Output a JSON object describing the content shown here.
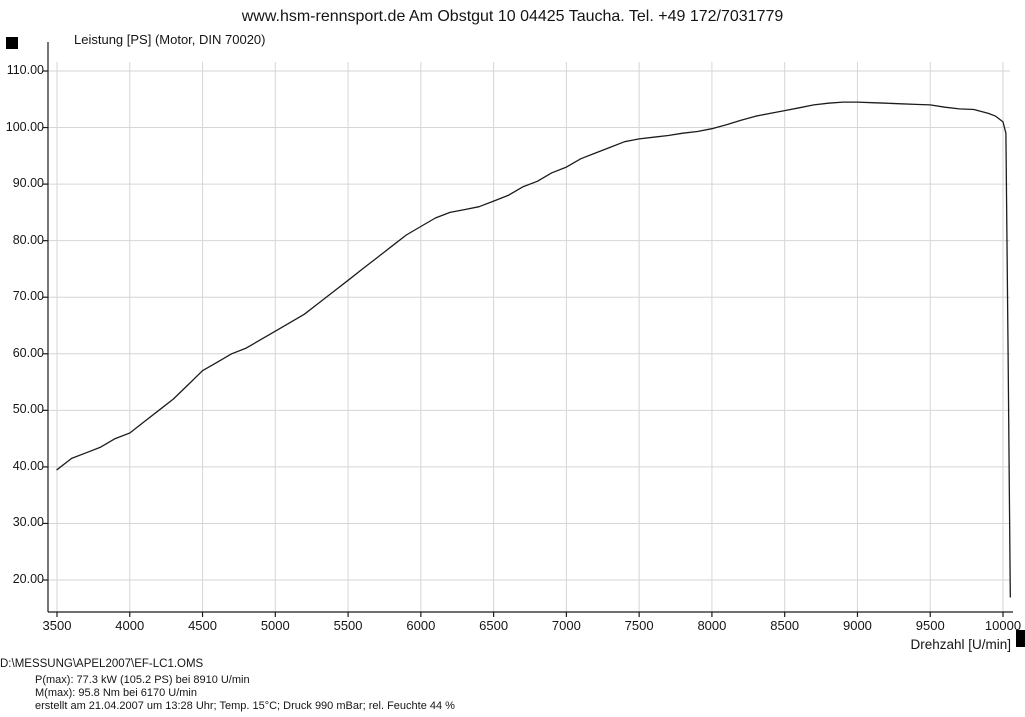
{
  "header": {
    "title": "www.hsm-rennsport.de Am Obstgut 10 04425 Taucha. Tel. +49 172/7031779"
  },
  "chart_data": {
    "type": "line",
    "title": "www.hsm-rennsport.de Am Obstgut 10 04425 Taucha. Tel. +49 172/7031779",
    "ylabel": "Leistung [PS] (Motor, DIN 70020)",
    "xlabel": "Drehzahl [U/min]",
    "xlim": [
      3500,
      10100
    ],
    "ylim": [
      20,
      110
    ],
    "grid": true,
    "legend": "none",
    "x_ticks": [
      3500,
      4000,
      4500,
      5000,
      5500,
      6000,
      6500,
      7000,
      7500,
      8000,
      8500,
      9000,
      9500,
      10000
    ],
    "x_tick_labels": [
      "3500",
      "4000",
      "4500",
      "5000",
      "5500",
      "6000",
      "6500",
      "7000",
      "7500",
      "8000",
      "8500",
      "9000",
      "9500",
      "10000"
    ],
    "y_ticks": [
      110,
      100,
      90,
      80,
      70,
      60,
      50,
      40,
      30,
      20
    ],
    "y_tick_labels": [
      "110.00",
      "100.00",
      "90.00",
      "80.00",
      "70.00",
      "60.00",
      "50.00",
      "40.00",
      "30.00",
      "20.00"
    ],
    "series": [
      {
        "name": "Leistung [PS]",
        "color": "#1c1c1c",
        "x": [
          3500,
          3600,
          3700,
          3800,
          3900,
          4000,
          4100,
          4200,
          4300,
          4400,
          4500,
          4600,
          4700,
          4800,
          4900,
          5000,
          5100,
          5200,
          5300,
          5400,
          5500,
          5600,
          5700,
          5800,
          5900,
          6000,
          6100,
          6200,
          6300,
          6400,
          6500,
          6600,
          6700,
          6800,
          6900,
          7000,
          7100,
          7200,
          7300,
          7400,
          7500,
          7600,
          7700,
          7800,
          7900,
          8000,
          8100,
          8200,
          8300,
          8400,
          8500,
          8600,
          8700,
          8800,
          8900,
          9000,
          9100,
          9200,
          9300,
          9400,
          9500,
          9600,
          9700,
          9800,
          9900,
          9950,
          10000,
          10020,
          10035,
          10050
        ],
        "y": [
          39.5,
          41.5,
          42.5,
          43.5,
          45,
          46,
          48,
          50,
          52,
          54.5,
          57,
          58.5,
          60,
          61,
          62.5,
          64,
          65.5,
          67,
          69,
          71,
          73,
          75,
          77,
          79,
          81,
          82.5,
          84,
          85,
          85.5,
          86,
          87,
          88,
          89.5,
          90.5,
          92,
          93,
          94.5,
          95.5,
          96.5,
          97.5,
          98,
          98.3,
          98.6,
          99,
          99.3,
          99.8,
          100.5,
          101.3,
          102,
          102.5,
          103,
          103.5,
          104,
          104.3,
          104.5,
          104.5,
          104.4,
          104.3,
          104.2,
          104.1,
          104,
          103.6,
          103.3,
          103.2,
          102.5,
          102,
          101,
          99,
          60,
          17
        ]
      }
    ],
    "annotations": {
      "p_max": "P(max): 77.3 kW (105.2 PS) bei 8910 U/min",
      "m_max": "M(max): 95.8 Nm bei 6170 U/min"
    }
  },
  "footer": {
    "file_path": "D:\\MESSUNG\\APEL2007\\EF-LC1.OMS",
    "p_max": "P(max): 77.3 kW (105.2 PS) bei 8910 U/min",
    "m_max": "M(max): 95.8 Nm bei 6170 U/min",
    "created": "erstellt am 21.04.2007 um 13:28 Uhr; Temp. 15°C; Druck 990 mBar; rel. Feuchte 44 %"
  },
  "colors": {
    "curve": "#1c1c1c",
    "grid": "#d6d6d6",
    "axis": "#1a1a1a"
  }
}
